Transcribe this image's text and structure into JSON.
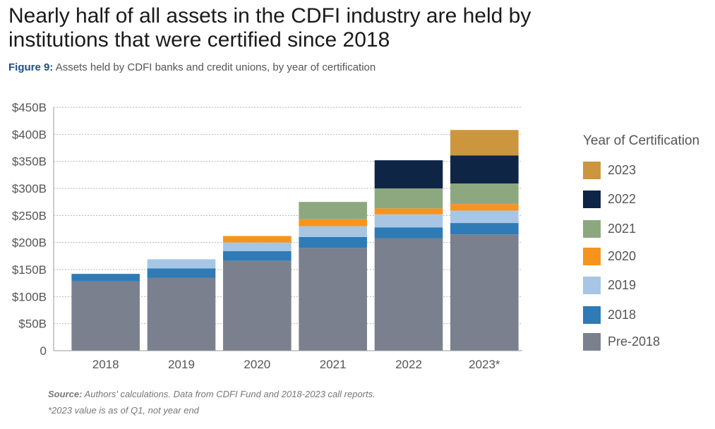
{
  "headline": "Nearly half of all assets in the CDFI industry are held by institutions that were certified since 2018",
  "subtitle": {
    "lead": "Figure 9:",
    "text": "Assets held by CDFI banks and credit unions, by year of certification"
  },
  "source": {
    "lead": "Source:",
    "text": "Authors' calculations. Data from CDFI Fund and 2018-2023 call reports."
  },
  "note": "*2023 value is as of Q1, not year end",
  "chart_data": {
    "type": "bar",
    "stacked": true,
    "title": "Assets held by CDFI banks and credit unions, by year of certification",
    "xlabel": "",
    "ylabel": "",
    "categories": [
      "2018",
      "2019",
      "2020",
      "2021",
      "2022",
      "2023*"
    ],
    "y_ticks": [
      {
        "value": 0,
        "label": "0"
      },
      {
        "value": 50,
        "label": "$50B"
      },
      {
        "value": 100,
        "label": "$100B"
      },
      {
        "value": 150,
        "label": "$150B"
      },
      {
        "value": 200,
        "label": "$200B"
      },
      {
        "value": 250,
        "label": "$250B"
      },
      {
        "value": 300,
        "label": "$300B"
      },
      {
        "value": 350,
        "label": "$350B"
      },
      {
        "value": 400,
        "label": "$400B"
      },
      {
        "value": 450,
        "label": "$450B"
      }
    ],
    "ylim": [
      0,
      450
    ],
    "grid": true,
    "legend_title": "Year of Certification",
    "legend_position": "right",
    "series": [
      {
        "name": "Pre-2018",
        "color": "#7a808e",
        "values": [
          128,
          135,
          166,
          190,
          208,
          215
        ]
      },
      {
        "name": "2018",
        "color": "#2e7bb6",
        "values": [
          14,
          17,
          18,
          20,
          20,
          21
        ]
      },
      {
        "name": "2019",
        "color": "#a7c6e5",
        "values": [
          0,
          17,
          16,
          20,
          24,
          23
        ]
      },
      {
        "name": "2020",
        "color": "#f7941d",
        "values": [
          0,
          0,
          12,
          13,
          11,
          12
        ]
      },
      {
        "name": "2021",
        "color": "#8da87f",
        "values": [
          0,
          0,
          0,
          32,
          37,
          38
        ]
      },
      {
        "name": "2022",
        "color": "#0f2545",
        "values": [
          0,
          0,
          0,
          0,
          52,
          52
        ]
      },
      {
        "name": "2023",
        "color": "#cc963e",
        "values": [
          0,
          0,
          0,
          0,
          0,
          47
        ]
      }
    ]
  }
}
